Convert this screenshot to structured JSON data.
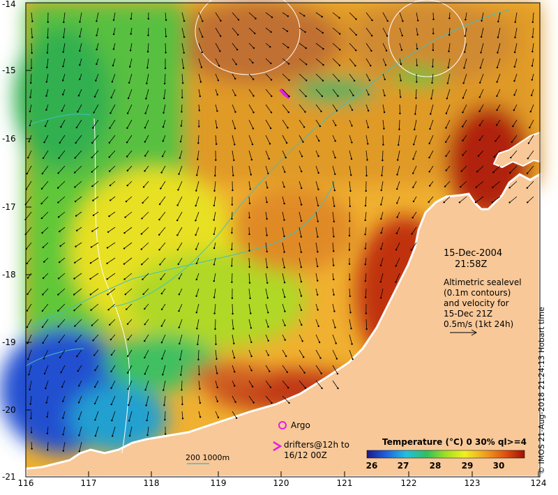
{
  "map": {
    "x_ticks": [
      "116",
      "117",
      "118",
      "119",
      "120",
      "121",
      "122",
      "123",
      "124"
    ],
    "y_ticks": [
      "-14",
      "-15",
      "-16",
      "-17",
      "-18",
      "-19",
      "-20",
      "-21"
    ],
    "date": "15-Dec-2004",
    "time": "21:58Z",
    "altimetry_lines": [
      "Altimetric sealevel",
      "(0.1m contours)",
      "and velocity for",
      "15-Dec 21Z",
      "0.5m/s (1kt 24h)"
    ],
    "argo_label": "Argo",
    "drifters_label_1": "drifters@12h to",
    "drifters_label_2": "16/12 00Z",
    "scale_label": "200  1000m",
    "colorbar_title": "Temperature (°C) 0 30% ql>=4",
    "colorbar_ticks": [
      "26",
      "27",
      "28",
      "29",
      "30"
    ],
    "credit": "© IMOS 21-Aug-2018 21:24:13 Hobart time",
    "colors": {
      "land": "#f8c898",
      "contour": "#40c0c0",
      "argo": "#e020e0"
    }
  }
}
